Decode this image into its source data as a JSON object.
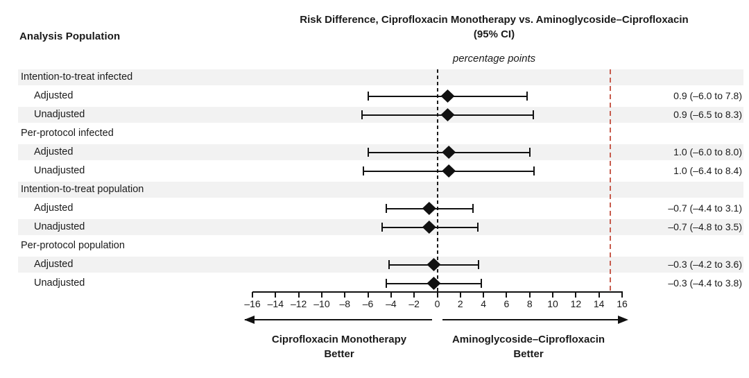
{
  "header": {
    "left_column_title": "Analysis Population",
    "title_line1": "Risk Difference, Ciprofloxacin Monotherapy vs. Aminoglycoside–Ciprofloxacin",
    "title_line2": "(95% CI)",
    "units_label": "percentage points"
  },
  "chart_data": {
    "type": "forest",
    "x_axis": {
      "min": -16,
      "max": 16,
      "tick_step": 2,
      "tick_labels": [
        "–16",
        "–14",
        "–12",
        "–10",
        "–8",
        "–6",
        "–4",
        "–2",
        "0",
        "2",
        "4",
        "6",
        "8",
        "10",
        "12",
        "14",
        "16"
      ]
    },
    "reference_line_value": 0,
    "noninferiority_margin_value": 15,
    "rows": [
      {
        "type": "group",
        "label": "Intention-to-treat infected"
      },
      {
        "type": "data",
        "label": "Adjusted",
        "estimate": 0.9,
        "ci_low": -6.0,
        "ci_high": 7.8,
        "value_text": "0.9 (–6.0 to 7.8)"
      },
      {
        "type": "data",
        "label": "Unadjusted",
        "estimate": 0.9,
        "ci_low": -6.5,
        "ci_high": 8.3,
        "value_text": "0.9 (–6.5 to 8.3)"
      },
      {
        "type": "group",
        "label": "Per-protocol infected"
      },
      {
        "type": "data",
        "label": "Adjusted",
        "estimate": 1.0,
        "ci_low": -6.0,
        "ci_high": 8.0,
        "value_text": "1.0 (–6.0 to 8.0)"
      },
      {
        "type": "data",
        "label": "Unadjusted",
        "estimate": 1.0,
        "ci_low": -6.4,
        "ci_high": 8.4,
        "value_text": "1.0 (–6.4 to 8.4)"
      },
      {
        "type": "group",
        "label": "Intention-to-treat population"
      },
      {
        "type": "data",
        "label": "Adjusted",
        "estimate": -0.7,
        "ci_low": -4.4,
        "ci_high": 3.1,
        "value_text": "–0.7 (–4.4 to 3.1)"
      },
      {
        "type": "data",
        "label": "Unadjusted",
        "estimate": -0.7,
        "ci_low": -4.8,
        "ci_high": 3.5,
        "value_text": "–0.7 (–4.8 to 3.5)"
      },
      {
        "type": "group",
        "label": "Per-protocol population"
      },
      {
        "type": "data",
        "label": "Adjusted",
        "estimate": -0.3,
        "ci_low": -4.2,
        "ci_high": 3.6,
        "value_text": "–0.3 (–4.2 to 3.6)"
      },
      {
        "type": "data",
        "label": "Unadjusted",
        "estimate": -0.3,
        "ci_low": -4.4,
        "ci_high": 3.8,
        "value_text": "–0.3 (–4.4 to 3.8)"
      }
    ],
    "footer": {
      "left_direction_line1": "Ciprofloxacin Monotherapy",
      "left_direction_line2": "Better",
      "right_direction_line1": "Aminoglycoside–Ciprofloxacin",
      "right_direction_line2": "Better"
    },
    "colors": {
      "band": "#f2f2f2",
      "marker": "#111111",
      "margin_line": "#c75b4c",
      "reference_line": "#1a1a1a"
    },
    "legend_position": "none",
    "grid": false
  }
}
